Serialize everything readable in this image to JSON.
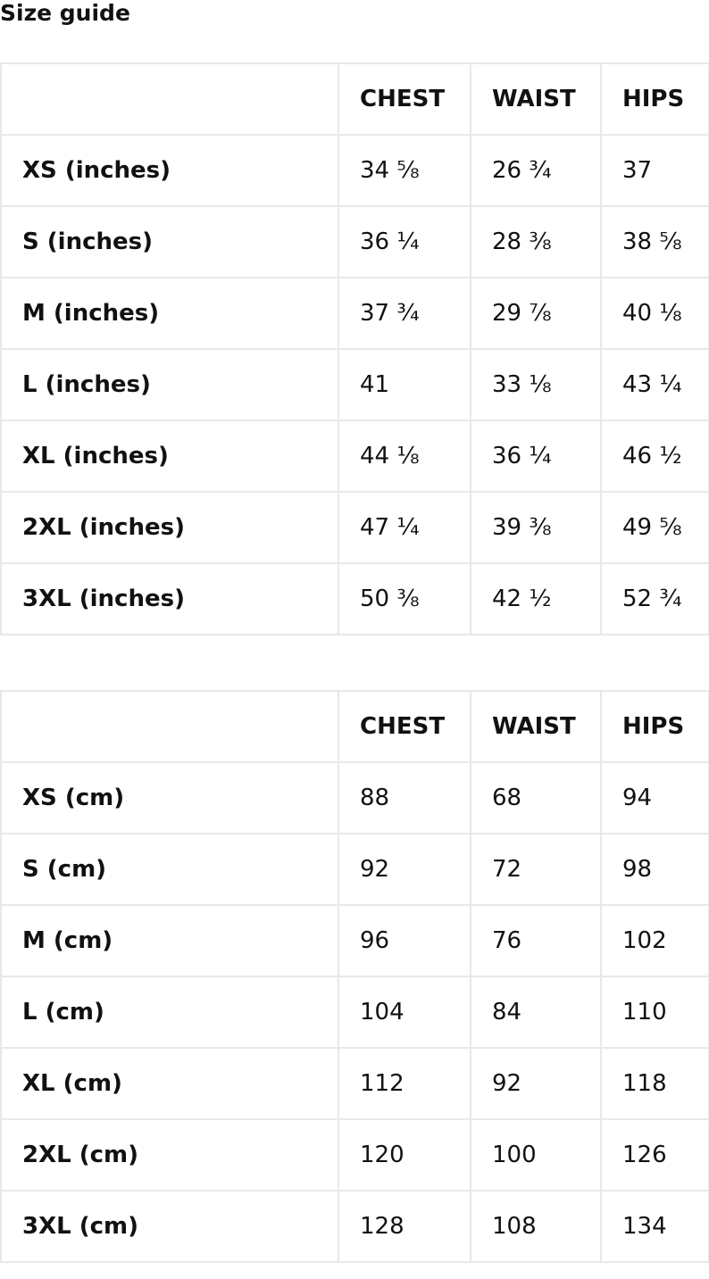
{
  "title": "Size guide",
  "tables": [
    {
      "headers": [
        "",
        "CHEST",
        "WAIST",
        "HIPS"
      ],
      "rows": [
        [
          "XS (inches)",
          "34 ⅝",
          "26 ¾",
          "37"
        ],
        [
          "S (inches)",
          "36 ¼",
          "28 ⅜",
          "38 ⅝"
        ],
        [
          "M (inches)",
          "37 ¾",
          "29 ⅞",
          "40 ⅛"
        ],
        [
          "L (inches)",
          "41",
          "33 ⅛",
          "43 ¼"
        ],
        [
          "XL (inches)",
          "44 ⅛",
          "36 ¼",
          "46 ½"
        ],
        [
          "2XL (inches)",
          "47 ¼",
          "39 ⅜",
          "49 ⅝"
        ],
        [
          "3XL (inches)",
          "50 ⅜",
          "42 ½",
          "52 ¾"
        ]
      ]
    },
    {
      "headers": [
        "",
        "CHEST",
        "WAIST",
        "HIPS"
      ],
      "rows": [
        [
          "XS (cm)",
          "88",
          "68",
          "94"
        ],
        [
          "S (cm)",
          "92",
          "72",
          "98"
        ],
        [
          "M (cm)",
          "96",
          "76",
          "102"
        ],
        [
          "L (cm)",
          "104",
          "84",
          "110"
        ],
        [
          "XL (cm)",
          "112",
          "92",
          "118"
        ],
        [
          "2XL (cm)",
          "120",
          "100",
          "126"
        ],
        [
          "3XL (cm)",
          "128",
          "108",
          "134"
        ]
      ]
    }
  ]
}
